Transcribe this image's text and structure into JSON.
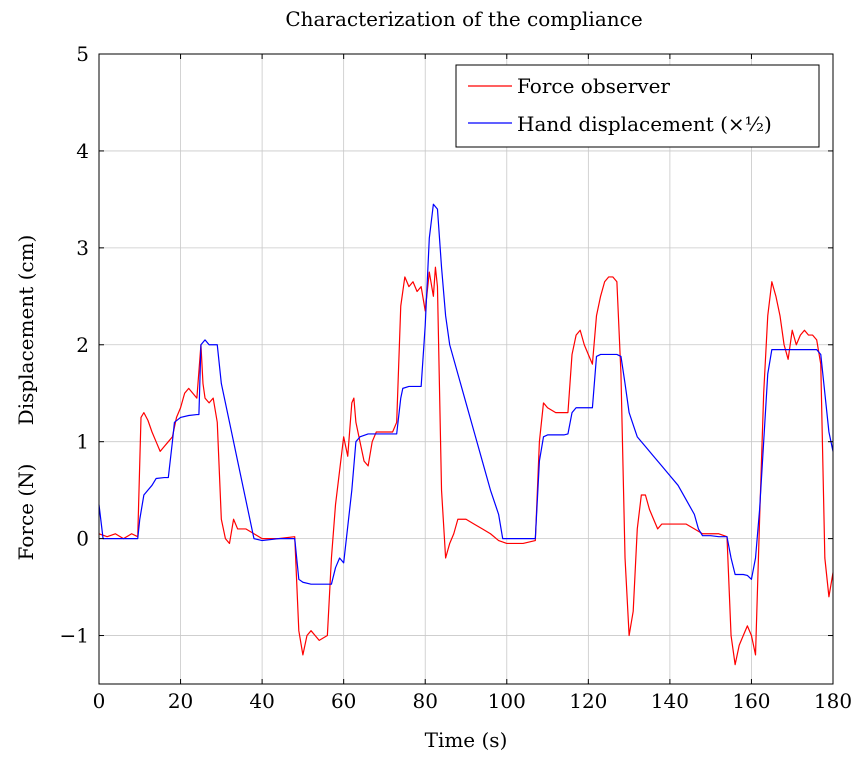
{
  "chart_data": {
    "type": "line",
    "title": "Characterization of the compliance",
    "xlabel": "Time (s)",
    "ylabel": {
      "force": "Force (N)",
      "displacement": "Displacement (cm)"
    },
    "xlim": [
      0,
      180
    ],
    "ylim": [
      -1.5,
      5
    ],
    "xticks": [
      0,
      20,
      40,
      60,
      80,
      100,
      120,
      140,
      160,
      180
    ],
    "yticks": [
      -1,
      0,
      1,
      2,
      3,
      4,
      5
    ],
    "ytick_labels": [
      "−1",
      "0",
      "1",
      "2",
      "3",
      "4",
      "5"
    ],
    "grid": true,
    "legend_position": "top-right",
    "series": [
      {
        "name": "Force observer",
        "color": "#ff0000",
        "points": [
          [
            0,
            0.05
          ],
          [
            2,
            0.02
          ],
          [
            4,
            0.05
          ],
          [
            6,
            0.0
          ],
          [
            8,
            0.05
          ],
          [
            9.5,
            0.02
          ],
          [
            10.3,
            1.25
          ],
          [
            11,
            1.3
          ],
          [
            12,
            1.22
          ],
          [
            13,
            1.1
          ],
          [
            14,
            1.0
          ],
          [
            15,
            0.9
          ],
          [
            16,
            0.95
          ],
          [
            17,
            1.0
          ],
          [
            18,
            1.05
          ],
          [
            19,
            1.25
          ],
          [
            20,
            1.35
          ],
          [
            21,
            1.5
          ],
          [
            22,
            1.55
          ],
          [
            23,
            1.5
          ],
          [
            24,
            1.45
          ],
          [
            25,
            2.0
          ],
          [
            25.5,
            1.6
          ],
          [
            26,
            1.45
          ],
          [
            27,
            1.4
          ],
          [
            28,
            1.45
          ],
          [
            29,
            1.2
          ],
          [
            30,
            0.2
          ],
          [
            31,
            0.0
          ],
          [
            32,
            -0.05
          ],
          [
            33,
            0.2
          ],
          [
            34,
            0.1
          ],
          [
            36,
            0.1
          ],
          [
            38,
            0.05
          ],
          [
            40,
            0.0
          ],
          [
            44,
            0.0
          ],
          [
            48,
            0.02
          ],
          [
            49,
            -0.95
          ],
          [
            50,
            -1.2
          ],
          [
            51,
            -1.0
          ],
          [
            52,
            -0.95
          ],
          [
            54,
            -1.05
          ],
          [
            56,
            -1.0
          ],
          [
            57,
            -0.2
          ],
          [
            58,
            0.35
          ],
          [
            59,
            0.7
          ],
          [
            60,
            1.05
          ],
          [
            61,
            0.85
          ],
          [
            62,
            1.4
          ],
          [
            62.5,
            1.45
          ],
          [
            63,
            1.2
          ],
          [
            64,
            1.0
          ],
          [
            65,
            0.8
          ],
          [
            66,
            0.75
          ],
          [
            67,
            1.0
          ],
          [
            68,
            1.1
          ],
          [
            70,
            1.1
          ],
          [
            72,
            1.1
          ],
          [
            73,
            1.2
          ],
          [
            74,
            2.4
          ],
          [
            75,
            2.7
          ],
          [
            76,
            2.6
          ],
          [
            77,
            2.65
          ],
          [
            78,
            2.55
          ],
          [
            79,
            2.6
          ],
          [
            80,
            2.35
          ],
          [
            81,
            2.75
          ],
          [
            82,
            2.5
          ],
          [
            82.5,
            2.8
          ],
          [
            83,
            2.6
          ],
          [
            84,
            0.5
          ],
          [
            85,
            -0.2
          ],
          [
            86,
            -0.05
          ],
          [
            87,
            0.05
          ],
          [
            88,
            0.2
          ],
          [
            90,
            0.2
          ],
          [
            92,
            0.15
          ],
          [
            94,
            0.1
          ],
          [
            96,
            0.05
          ],
          [
            98,
            -0.02
          ],
          [
            100,
            -0.05
          ],
          [
            104,
            -0.05
          ],
          [
            107,
            -0.02
          ],
          [
            108,
            1.0
          ],
          [
            109,
            1.4
          ],
          [
            110,
            1.35
          ],
          [
            112,
            1.3
          ],
          [
            114,
            1.3
          ],
          [
            115,
            1.3
          ],
          [
            116,
            1.9
          ],
          [
            117,
            2.1
          ],
          [
            118,
            2.15
          ],
          [
            119,
            2.0
          ],
          [
            120,
            1.9
          ],
          [
            121,
            1.8
          ],
          [
            122,
            2.3
          ],
          [
            123,
            2.5
          ],
          [
            124,
            2.65
          ],
          [
            125,
            2.7
          ],
          [
            126,
            2.7
          ],
          [
            127,
            2.65
          ],
          [
            128,
            1.7
          ],
          [
            129,
            -0.2
          ],
          [
            130,
            -1.0
          ],
          [
            131,
            -0.75
          ],
          [
            132,
            0.1
          ],
          [
            133,
            0.45
          ],
          [
            134,
            0.45
          ],
          [
            135,
            0.3
          ],
          [
            136,
            0.2
          ],
          [
            137,
            0.1
          ],
          [
            138,
            0.15
          ],
          [
            140,
            0.15
          ],
          [
            142,
            0.15
          ],
          [
            144,
            0.15
          ],
          [
            146,
            0.1
          ],
          [
            148,
            0.05
          ],
          [
            150,
            0.05
          ],
          [
            152,
            0.05
          ],
          [
            154,
            0.02
          ],
          [
            155,
            -1.0
          ],
          [
            156,
            -1.3
          ],
          [
            157,
            -1.1
          ],
          [
            158,
            -1.0
          ],
          [
            159,
            -0.9
          ],
          [
            160,
            -1.0
          ],
          [
            161,
            -1.2
          ],
          [
            162,
            0.2
          ],
          [
            163,
            1.5
          ],
          [
            164,
            2.3
          ],
          [
            165,
            2.65
          ],
          [
            166,
            2.5
          ],
          [
            167,
            2.3
          ],
          [
            168,
            2.0
          ],
          [
            169,
            1.85
          ],
          [
            170,
            2.15
          ],
          [
            171,
            2.0
          ],
          [
            172,
            2.1
          ],
          [
            173,
            2.15
          ],
          [
            174,
            2.1
          ],
          [
            175,
            2.1
          ],
          [
            176,
            2.05
          ],
          [
            177,
            1.8
          ],
          [
            178,
            -0.2
          ],
          [
            179,
            -0.6
          ],
          [
            180,
            -0.35
          ]
        ]
      },
      {
        "name": "Hand displacement (×½)",
        "color": "#0000ff",
        "points": [
          [
            0,
            0.35
          ],
          [
            1,
            0.0
          ],
          [
            2,
            0.0
          ],
          [
            4,
            0.0
          ],
          [
            6,
            0.0
          ],
          [
            8,
            0.0
          ],
          [
            9.5,
            0.0
          ],
          [
            10,
            0.2
          ],
          [
            11,
            0.45
          ],
          [
            12,
            0.5
          ],
          [
            13,
            0.55
          ],
          [
            14,
            0.62
          ],
          [
            16,
            0.63
          ],
          [
            17,
            0.63
          ],
          [
            18,
            1.0
          ],
          [
            18.5,
            1.2
          ],
          [
            20,
            1.25
          ],
          [
            22,
            1.27
          ],
          [
            24,
            1.28
          ],
          [
            24.5,
            1.28
          ],
          [
            25,
            2.0
          ],
          [
            26,
            2.05
          ],
          [
            27,
            2.0
          ],
          [
            28,
            2.0
          ],
          [
            29,
            2.0
          ],
          [
            30,
            1.6
          ],
          [
            32,
            1.2
          ],
          [
            34,
            0.8
          ],
          [
            36,
            0.4
          ],
          [
            38,
            0.0
          ],
          [
            40,
            -0.02
          ],
          [
            44,
            0.0
          ],
          [
            48,
            0.0
          ],
          [
            49,
            -0.42
          ],
          [
            50,
            -0.45
          ],
          [
            52,
            -0.47
          ],
          [
            54,
            -0.47
          ],
          [
            56,
            -0.47
          ],
          [
            57,
            -0.47
          ],
          [
            58,
            -0.3
          ],
          [
            59,
            -0.2
          ],
          [
            60,
            -0.25
          ],
          [
            62,
            0.5
          ],
          [
            63,
            1.0
          ],
          [
            64,
            1.05
          ],
          [
            66,
            1.08
          ],
          [
            68,
            1.08
          ],
          [
            70,
            1.08
          ],
          [
            72,
            1.08
          ],
          [
            73,
            1.08
          ],
          [
            74,
            1.45
          ],
          [
            74.5,
            1.55
          ],
          [
            76,
            1.57
          ],
          [
            78,
            1.57
          ],
          [
            79,
            1.57
          ],
          [
            80,
            2.2
          ],
          [
            81,
            3.1
          ],
          [
            82,
            3.45
          ],
          [
            83,
            3.4
          ],
          [
            84,
            2.8
          ],
          [
            85,
            2.3
          ],
          [
            86,
            2.0
          ],
          [
            88,
            1.7
          ],
          [
            90,
            1.4
          ],
          [
            92,
            1.1
          ],
          [
            94,
            0.8
          ],
          [
            96,
            0.5
          ],
          [
            98,
            0.25
          ],
          [
            99,
            0.0
          ],
          [
            100,
            0.0
          ],
          [
            104,
            0.0
          ],
          [
            106,
            0.0
          ],
          [
            107,
            0.0
          ],
          [
            108,
            0.8
          ],
          [
            109,
            1.05
          ],
          [
            110,
            1.07
          ],
          [
            112,
            1.07
          ],
          [
            114,
            1.07
          ],
          [
            115,
            1.08
          ],
          [
            116,
            1.3
          ],
          [
            117,
            1.35
          ],
          [
            118,
            1.35
          ],
          [
            120,
            1.35
          ],
          [
            121,
            1.35
          ],
          [
            122,
            1.88
          ],
          [
            123,
            1.9
          ],
          [
            125,
            1.9
          ],
          [
            127,
            1.9
          ],
          [
            128,
            1.88
          ],
          [
            129,
            1.6
          ],
          [
            130,
            1.3
          ],
          [
            132,
            1.05
          ],
          [
            134,
            0.95
          ],
          [
            136,
            0.85
          ],
          [
            138,
            0.75
          ],
          [
            140,
            0.65
          ],
          [
            142,
            0.55
          ],
          [
            144,
            0.4
          ],
          [
            146,
            0.25
          ],
          [
            147,
            0.1
          ],
          [
            148,
            0.03
          ],
          [
            150,
            0.03
          ],
          [
            152,
            0.02
          ],
          [
            154,
            0.02
          ],
          [
            155,
            -0.2
          ],
          [
            156,
            -0.37
          ],
          [
            158,
            -0.37
          ],
          [
            159,
            -0.38
          ],
          [
            160,
            -0.42
          ],
          [
            161,
            -0.2
          ],
          [
            162,
            0.3
          ],
          [
            163,
            1.0
          ],
          [
            164,
            1.7
          ],
          [
            165,
            1.95
          ],
          [
            166,
            1.95
          ],
          [
            168,
            1.95
          ],
          [
            170,
            1.95
          ],
          [
            172,
            1.95
          ],
          [
            174,
            1.95
          ],
          [
            176,
            1.95
          ],
          [
            177,
            1.9
          ],
          [
            178,
            1.5
          ],
          [
            179,
            1.1
          ],
          [
            180,
            0.9
          ]
        ]
      }
    ]
  }
}
